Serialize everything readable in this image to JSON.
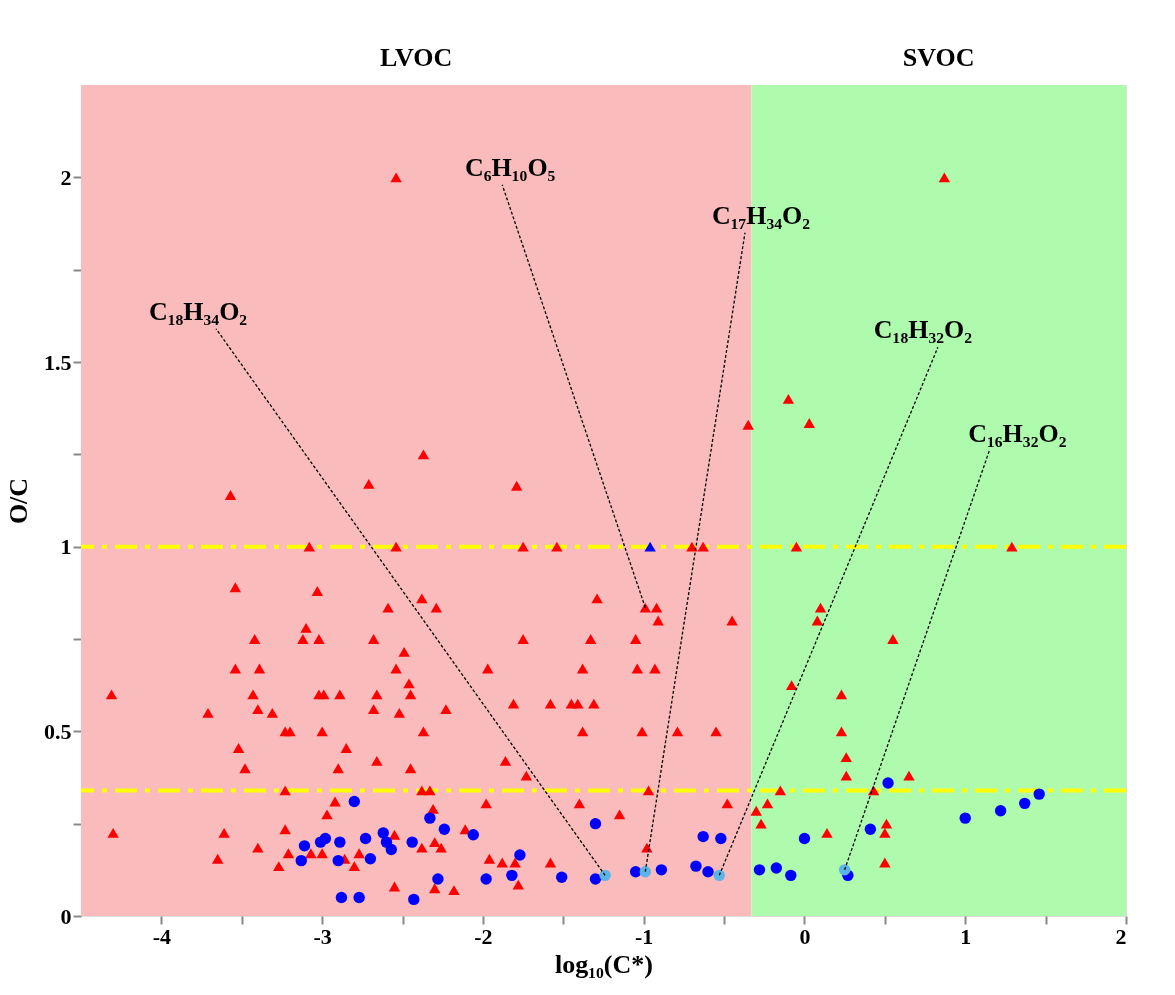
{
  "chart_data": {
    "type": "scatter",
    "xlabel": "log₁₀(C*)",
    "ylabel": "O/C",
    "xlim": [
      -4.5,
      2
    ],
    "ylim": [
      0,
      2.25
    ],
    "xticks": [
      -4,
      {
        "value": -3.5,
        "label": null
      },
      -3,
      {
        "value": -2.5,
        "label": null
      },
      -2,
      {
        "value": -1.5,
        "label": null
      },
      -1,
      {
        "value": -0.5,
        "label": null
      },
      0,
      {
        "value": 0.5,
        "label": null
      },
      1,
      {
        "value": 1.5,
        "label": null
      },
      2
    ],
    "yticks": [
      0,
      {
        "value": 0.25,
        "label": null
      },
      0.5,
      {
        "value": 0.75,
        "label": null
      },
      1,
      {
        "value": 1.25,
        "label": null
      },
      1.5,
      {
        "value": 1.75,
        "label": null
      },
      2
    ],
    "grid": false,
    "ref_lines": [
      {
        "axis": "y",
        "value": 1.0,
        "color": "#ffff00",
        "line_style": "dashed"
      },
      {
        "axis": "y",
        "value": 0.34,
        "color": "#ffff00",
        "line_style": "dashed"
      }
    ],
    "bands": [
      {
        "axis": "x",
        "from": -4.5,
        "to": -0.33,
        "label": "LVOC",
        "color": "#f9bbbb"
      },
      {
        "axis": "x",
        "from": -0.33,
        "to": 2,
        "label": "SVOC",
        "color": "#aefbad"
      }
    ],
    "series": [
      {
        "color": "#ff0000",
        "marker": "triangle",
        "x": [
          -3.57,
          -2.71,
          -3.08,
          -2.54,
          -3.54,
          -3.03,
          -2.59,
          -3.1,
          -3.12,
          -3.02,
          -3.42,
          -2.68,
          -2.49,
          -3.54,
          -3.39,
          -2.54,
          -2.46,
          -4.31,
          -3.43,
          -3.02,
          -2.99,
          -2.89,
          -2.66,
          -2.45,
          -3.71,
          -3.4,
          -3.31,
          -2.68,
          -2.52,
          -3.23,
          -3.2,
          -3.0,
          -3.52,
          -2.85,
          -3.48,
          -2.9,
          -2.66,
          -2.45,
          -3.23,
          -2.92,
          -2.97,
          -4.3,
          -3.61,
          -3.23,
          -2.55,
          -3.65,
          -3.4,
          -3.27,
          -3.21,
          -3.07,
          -3.0,
          -2.86,
          -2.8,
          -2.77,
          -2.55,
          -2.54,
          -2.37,
          -1.79,
          -0.35,
          0.87,
          -0.1,
          0.03,
          -1.75,
          -1.54,
          -0.7,
          -0.63,
          -2.38,
          -2.29,
          -1.29,
          -0.99,
          -0.92,
          -0.91,
          -0.45,
          -1.75,
          -1.33,
          -1.05,
          -1.97,
          -1.38,
          -1.04,
          -0.93,
          -2.23,
          -1.81,
          -1.58,
          -1.45,
          -1.41,
          -1.31,
          -2.37,
          -1.38,
          -1.01,
          -0.79,
          -0.55,
          -1.86,
          -1.73,
          -2.38,
          -2.33,
          -0.97,
          -2.31,
          -1.98,
          -1.4,
          -1.15,
          -0.48,
          -0.3,
          -0.23,
          -0.27,
          -2.11,
          -2.38,
          -2.3,
          -2.26,
          -0.98,
          -1.96,
          -1.88,
          -1.8,
          -1.58,
          -2.3,
          -2.18,
          -1.78,
          -0.05,
          1.29,
          0.1,
          0.08,
          0.55,
          -0.08,
          0.23,
          0.23,
          0.26,
          0.26,
          0.65,
          -0.15,
          0.43,
          0.14,
          0.51,
          0.5,
          0.5
        ],
        "values": [
          1.14,
          1.17,
          1.0,
          1.0,
          0.89,
          0.88,
          0.835,
          0.78,
          0.75,
          0.75,
          0.75,
          0.75,
          0.715,
          0.67,
          0.67,
          0.67,
          0.63,
          0.6,
          0.6,
          0.6,
          0.6,
          0.6,
          0.6,
          0.6,
          0.55,
          0.56,
          0.55,
          0.56,
          0.55,
          0.5,
          0.5,
          0.5,
          0.455,
          0.455,
          0.4,
          0.4,
          0.42,
          0.4,
          0.34,
          0.31,
          0.275,
          0.225,
          0.225,
          0.235,
          0.22,
          0.155,
          0.185,
          0.135,
          0.17,
          0.17,
          0.17,
          0.155,
          0.135,
          0.17,
          0.08,
          2.0,
          1.25,
          1.165,
          1.33,
          2.0,
          1.4,
          1.335,
          1.0,
          1.0,
          1.0,
          1.0,
          0.86,
          0.835,
          0.86,
          0.835,
          0.835,
          0.8,
          0.8,
          0.75,
          0.75,
          0.75,
          0.67,
          0.67,
          0.67,
          0.67,
          0.56,
          0.575,
          0.575,
          0.575,
          0.575,
          0.575,
          0.5,
          0.5,
          0.5,
          0.5,
          0.5,
          0.42,
          0.38,
          0.34,
          0.34,
          0.34,
          0.29,
          0.305,
          0.305,
          0.275,
          0.305,
          0.285,
          0.305,
          0.25,
          0.235,
          0.185,
          0.2,
          0.185,
          0.185,
          0.155,
          0.145,
          0.145,
          0.145,
          0.075,
          0.07,
          0.085,
          1.0,
          1.0,
          0.835,
          0.8,
          0.75,
          0.625,
          0.6,
          0.5,
          0.43,
          0.38,
          0.38,
          0.34,
          0.34,
          0.225,
          0.25,
          0.225,
          0.145
        ]
      },
      {
        "color": "#0000ff",
        "marker": "triangle",
        "x": [
          -0.96
        ],
        "values": [
          1.0
        ]
      },
      {
        "color": "#0000ff",
        "marker": "circle",
        "x": [
          -2.8,
          -3.11,
          -3.01,
          -2.98,
          -2.89,
          -2.73,
          -2.62,
          -2.6,
          -2.57,
          -3.13,
          -2.9,
          -2.7,
          -2.44,
          -2.88,
          -2.77,
          -2.43,
          -2.33,
          -2.24,
          -2.06,
          -1.77,
          -2.28,
          -1.98,
          -1.82,
          -1.51,
          -1.3,
          -1.3,
          -1.05,
          -0.89,
          -0.63,
          -0.52,
          -0.675,
          -0.6,
          -0.28,
          -0.175,
          -0.085,
          0.0,
          0.27,
          0.41,
          0.52,
          1.0,
          1.22,
          1.37,
          1.46
        ],
        "values": [
          0.31,
          0.19,
          0.2,
          0.21,
          0.2,
          0.21,
          0.225,
          0.2,
          0.18,
          0.15,
          0.15,
          0.155,
          0.2,
          0.05,
          0.05,
          0.045,
          0.265,
          0.235,
          0.22,
          0.165,
          0.1,
          0.1,
          0.11,
          0.105,
          0.25,
          0.1,
          0.12,
          0.125,
          0.215,
          0.21,
          0.135,
          0.12,
          0.125,
          0.13,
          0.11,
          0.21,
          0.11,
          0.235,
          0.36,
          0.265,
          0.285,
          0.305,
          0.33
        ]
      },
      {
        "color": "#5ab4e8",
        "marker": "circle",
        "x": [
          -1.24,
          -0.99,
          -0.53,
          0.25
        ],
        "values": [
          0.11,
          0.12,
          0.11,
          0.125
        ]
      }
    ],
    "annotations": [
      {
        "text": "C₁₈H₃₄O₂",
        "x": -1.24,
        "y": 0.11
      },
      {
        "text": "C₆H₁₀O₅",
        "x": -0.99,
        "y": 0.835
      },
      {
        "text": "C₁₇H₃₄O₂",
        "x": -0.99,
        "y": 0.12
      },
      {
        "text": "C₁₈H₃₂O₂",
        "x": -0.53,
        "y": 0.11
      },
      {
        "text": "C₁₆H₃₂O₂",
        "x": 0.25,
        "y": 0.125
      }
    ]
  }
}
